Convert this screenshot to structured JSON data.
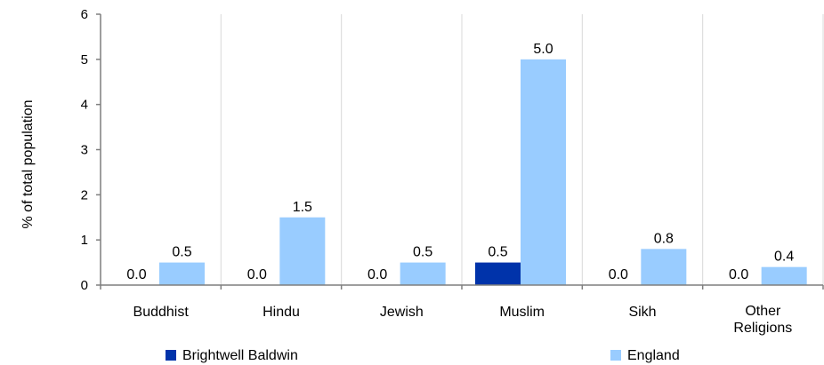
{
  "chart_data": {
    "type": "bar",
    "categories": [
      "Buddhist",
      "Hindu",
      "Jewish",
      "Muslim",
      "Sikh",
      "Other Religions"
    ],
    "series": [
      {
        "name": "Brightwell Baldwin",
        "color": "#0033aa",
        "values": [
          0.0,
          0.0,
          0.0,
          0.5,
          0.0,
          0.0
        ]
      },
      {
        "name": "England",
        "color": "#99ccff",
        "values": [
          0.5,
          1.5,
          0.5,
          5.0,
          0.8,
          0.4
        ]
      }
    ],
    "data_labels": [
      [
        "0.0",
        "0.0",
        "0.0",
        "0.5",
        "0.0",
        "0.0"
      ],
      [
        "0.5",
        "1.5",
        "0.5",
        "5.0",
        "0.8",
        "0.4"
      ]
    ],
    "ylabel": "% of total population",
    "xlabel": "",
    "ylim": [
      0,
      6
    ],
    "yticks": [
      0,
      1,
      2,
      3,
      4,
      5,
      6
    ],
    "grid": "vertical",
    "legend_position": "bottom"
  }
}
